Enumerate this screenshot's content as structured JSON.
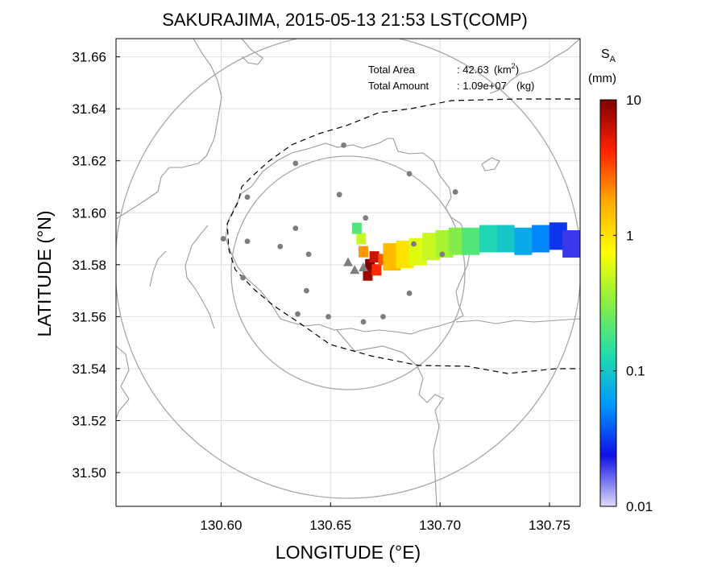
{
  "chart_data": {
    "type": "heatmap",
    "title": "SAKURAJIMA, 2015-05-13 21:53 LST(COMP)",
    "xlabel": "LONGITUDE (°E)",
    "ylabel": "LATITUDE (°N)",
    "xlim": [
      130.552,
      130.764
    ],
    "ylim": [
      31.487,
      31.667
    ],
    "x_ticks": [
      "130.60",
      "130.65",
      "130.70",
      "130.75"
    ],
    "y_ticks": [
      "31.50",
      "31.52",
      "31.54",
      "31.56",
      "31.58",
      "31.60",
      "31.62",
      "31.64",
      "31.66"
    ],
    "grid": true,
    "annotations": {
      "area_label": "Total Area",
      "area_value": ": 42.63",
      "area_unit_pre": "(km",
      "area_unit_sup": "2",
      "area_unit_post": ")",
      "amount_label": "Total Amount",
      "amount_value": ": 1.09e+07",
      "amount_unit": "(kg)"
    },
    "colorbar": {
      "label_main": "S",
      "label_sub": "A",
      "unit": "(mm)",
      "scale": "log",
      "range": [
        0.01,
        10
      ],
      "ticks": [
        "10",
        "1",
        "0.1",
        "0.01"
      ],
      "colors": [
        "#e0dcf8",
        "#1010e6",
        "#0099ff",
        "#22ddaa",
        "#88ee44",
        "#ffff00",
        "#ffaa00",
        "#ff2200",
        "#800000"
      ]
    },
    "vents": [
      {
        "lon": 130.658,
        "lat": 31.581
      },
      {
        "lon": 130.661,
        "lat": 31.578
      },
      {
        "lon": 130.665,
        "lat": 31.579
      }
    ],
    "stations": [
      {
        "lon": 130.656,
        "lat": 31.626
      },
      {
        "lon": 130.634,
        "lat": 31.619
      },
      {
        "lon": 130.686,
        "lat": 31.615
      },
      {
        "lon": 130.612,
        "lat": 31.606
      },
      {
        "lon": 130.707,
        "lat": 31.608
      },
      {
        "lon": 130.654,
        "lat": 31.607
      },
      {
        "lon": 130.666,
        "lat": 31.598
      },
      {
        "lon": 130.601,
        "lat": 31.59
      },
      {
        "lon": 130.612,
        "lat": 31.589
      },
      {
        "lon": 130.634,
        "lat": 31.594
      },
      {
        "lon": 130.627,
        "lat": 31.587
      },
      {
        "lon": 130.64,
        "lat": 31.584
      },
      {
        "lon": 130.688,
        "lat": 31.588
      },
      {
        "lon": 130.701,
        "lat": 31.584
      },
      {
        "lon": 130.61,
        "lat": 31.575
      },
      {
        "lon": 130.639,
        "lat": 31.57
      },
      {
        "lon": 130.686,
        "lat": 31.569
      },
      {
        "lon": 130.635,
        "lat": 31.561
      },
      {
        "lon": 130.649,
        "lat": 31.56
      },
      {
        "lon": 130.665,
        "lat": 31.558
      },
      {
        "lon": 130.674,
        "lat": 31.56
      }
    ],
    "plume_cells": [
      {
        "lon": 130.668,
        "lat": 31.58,
        "value": 10
      },
      {
        "lon": 130.67,
        "lat": 31.583,
        "value": 6
      },
      {
        "lon": 130.667,
        "lat": 31.576,
        "value": 8
      },
      {
        "lon": 130.671,
        "lat": 31.578,
        "value": 4
      },
      {
        "lon": 130.674,
        "lat": 31.582,
        "value": 3
      },
      {
        "lon": 130.665,
        "lat": 31.585,
        "value": 2
      },
      {
        "lon": 130.664,
        "lat": 31.59,
        "value": 0.5
      },
      {
        "lon": 130.662,
        "lat": 31.594,
        "value": 0.2
      },
      {
        "lon": 130.678,
        "lat": 31.583,
        "value": 1.5
      },
      {
        "lon": 130.684,
        "lat": 31.584,
        "value": 1.0
      },
      {
        "lon": 130.69,
        "lat": 31.585,
        "value": 0.6
      },
      {
        "lon": 130.696,
        "lat": 31.587,
        "value": 0.5
      },
      {
        "lon": 130.702,
        "lat": 31.588,
        "value": 0.4
      },
      {
        "lon": 130.708,
        "lat": 31.589,
        "value": 0.3
      },
      {
        "lon": 130.714,
        "lat": 31.589,
        "value": 0.2
      },
      {
        "lon": 130.722,
        "lat": 31.59,
        "value": 0.12
      },
      {
        "lon": 130.73,
        "lat": 31.59,
        "value": 0.1
      },
      {
        "lon": 130.738,
        "lat": 31.589,
        "value": 0.07
      },
      {
        "lon": 130.746,
        "lat": 31.59,
        "value": 0.05
      },
      {
        "lon": 130.754,
        "lat": 31.591,
        "value": 0.03
      },
      {
        "lon": 130.76,
        "lat": 31.588,
        "value": 0.02
      }
    ]
  }
}
